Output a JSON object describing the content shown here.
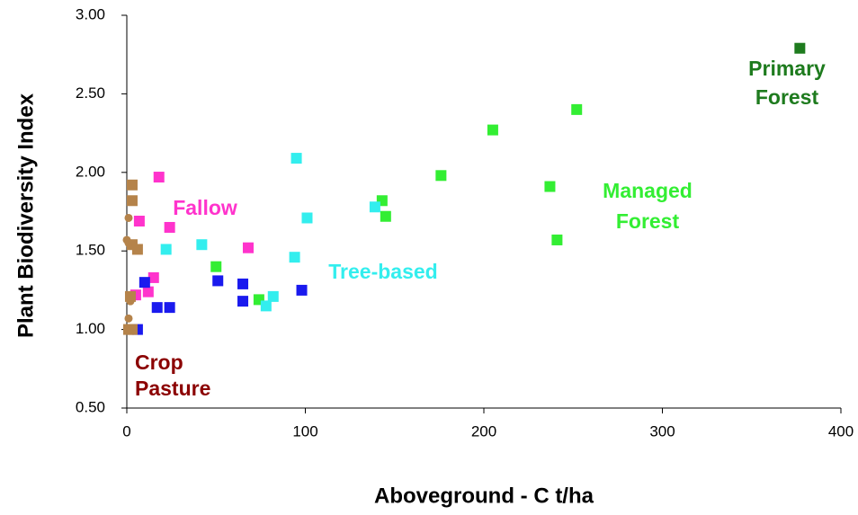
{
  "chart_data": {
    "type": "scatter",
    "x_label": "Aboveground - C t/ha",
    "y_label": "Plant Biodiversity Index",
    "xlim": [
      0,
      400
    ],
    "xticks": [
      0,
      100,
      200,
      300,
      400
    ],
    "ylim": [
      0.5,
      3.0
    ],
    "yticks": [
      {
        "value": 0.5,
        "label": "0.50"
      },
      {
        "value": 1.0,
        "label": "1.00"
      },
      {
        "value": 1.5,
        "label": "1.50"
      },
      {
        "value": 2.0,
        "label": "2.00"
      },
      {
        "value": 2.5,
        "label": "2.50"
      },
      {
        "value": 3.0,
        "label": "3.00"
      }
    ],
    "series": [
      {
        "color": "#1e7b1e",
        "marker": "square",
        "x": [
          377
        ],
        "values": [
          2.79
        ]
      },
      {
        "color": "#33ee33",
        "marker": "square",
        "x": [
          252,
          205,
          176,
          237,
          143,
          145,
          241,
          50,
          74
        ],
        "values": [
          2.4,
          2.27,
          1.98,
          1.91,
          1.82,
          1.72,
          1.57,
          1.4,
          1.19
        ]
      },
      {
        "color": "#33eeee",
        "marker": "square",
        "x": [
          95,
          101,
          139,
          42,
          22,
          94,
          82,
          78
        ],
        "values": [
          2.09,
          1.71,
          1.78,
          1.54,
          1.51,
          1.46,
          1.21,
          1.15
        ]
      },
      {
        "color": "#ff33cc",
        "marker": "square",
        "x": [
          18,
          7,
          24,
          68,
          15,
          12,
          5
        ],
        "values": [
          1.97,
          1.69,
          1.65,
          1.52,
          1.33,
          1.24,
          1.22
        ]
      },
      {
        "color": "#1a1aee",
        "marker": "square",
        "x": [
          10,
          51,
          65,
          17,
          24,
          65,
          98,
          6
        ],
        "values": [
          1.3,
          1.31,
          1.29,
          1.14,
          1.14,
          1.18,
          1.25,
          1.0
        ]
      },
      {
        "color": "#b5834a",
        "marker": "square",
        "x": [
          3,
          3,
          3,
          6,
          1,
          3,
          2
        ],
        "values": [
          1.92,
          1.82,
          1.54,
          1.51,
          1.0,
          1.0,
          1.21
        ]
      },
      {
        "color": "#b5834a",
        "marker": "circle",
        "x": [
          1,
          0,
          1,
          1,
          2,
          1
        ],
        "values": [
          1.71,
          1.57,
          1.07,
          1.0,
          1.18,
          1.55
        ]
      }
    ],
    "annotations": [
      {
        "lines": [
          "Primary",
          "Forest"
        ],
        "color": "#1e7b1e"
      },
      {
        "lines": [
          "Managed",
          "Forest"
        ],
        "color": "#33ee33"
      },
      {
        "lines": [
          "Tree-based"
        ],
        "color": "#33eeee"
      },
      {
        "lines": [
          "Fallow"
        ],
        "color": "#ff33cc"
      },
      {
        "lines": [
          "Crop",
          "Pasture"
        ],
        "color": "#8b0000"
      }
    ]
  }
}
